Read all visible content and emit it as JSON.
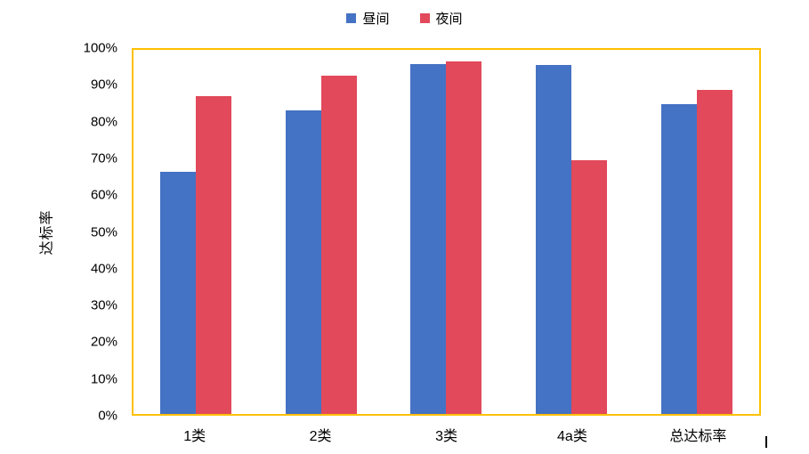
{
  "chart_data": {
    "type": "bar",
    "title": "",
    "categories": [
      "1类",
      "2类",
      "3类",
      "4a类",
      "总达标率"
    ],
    "series": [
      {
        "name": "昼间",
        "color": "#4472C4",
        "values": [
          66.5,
          83.5,
          96.1,
          95.9,
          85.1
        ]
      },
      {
        "name": "夜间",
        "color": "#E2495B",
        "values": [
          87.4,
          93.0,
          96.8,
          69.8,
          88.9
        ]
      }
    ],
    "xlabel": "",
    "ylabel": "达标率",
    "ylim": [
      0,
      100
    ],
    "ytick_step": 10,
    "ytick_labels": [
      "0%",
      "10%",
      "20%",
      "30%",
      "40%",
      "50%",
      "60%",
      "70%",
      "80%",
      "90%",
      "100%"
    ],
    "unit": "%",
    "grid": false,
    "legend_position": "top",
    "plot_border_color": "#FFC000",
    "background_color": "#FFFFFF"
  }
}
